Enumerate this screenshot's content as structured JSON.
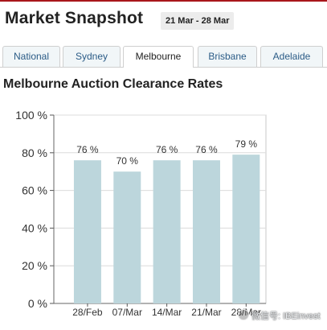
{
  "header": {
    "title": "Market Snapshot",
    "date_range": "21 Mar - 28 Mar",
    "accent_color": "#a8161b"
  },
  "tabs": [
    {
      "label": "National",
      "active": false
    },
    {
      "label": "Sydney",
      "active": false
    },
    {
      "label": "Melbourne",
      "active": true
    },
    {
      "label": "Brisbane",
      "active": false
    },
    {
      "label": "Adelaide",
      "active": false
    }
  ],
  "chart_data": {
    "type": "bar",
    "title": "Melbourne Auction Clearance Rates",
    "xlabel": "",
    "ylabel": "",
    "categories": [
      "28/Feb",
      "07/Mar",
      "14/Mar",
      "21/Mar",
      "28/Mar"
    ],
    "values": [
      76,
      70,
      76,
      76,
      79
    ],
    "value_labels": [
      "76 %",
      "70 %",
      "76 %",
      "76 %",
      "79 %"
    ],
    "y_ticks": [
      0,
      20,
      40,
      60,
      80,
      100
    ],
    "y_tick_labels": [
      "0 %",
      "20 %",
      "40 %",
      "60 %",
      "80 %",
      "100 %"
    ],
    "ylim": [
      0,
      100
    ],
    "grid": true,
    "legend": "none",
    "bar_color": "#bcd6dc"
  },
  "watermark": {
    "text": "微信号: IBEinvest",
    "icon": "wechat-icon"
  }
}
